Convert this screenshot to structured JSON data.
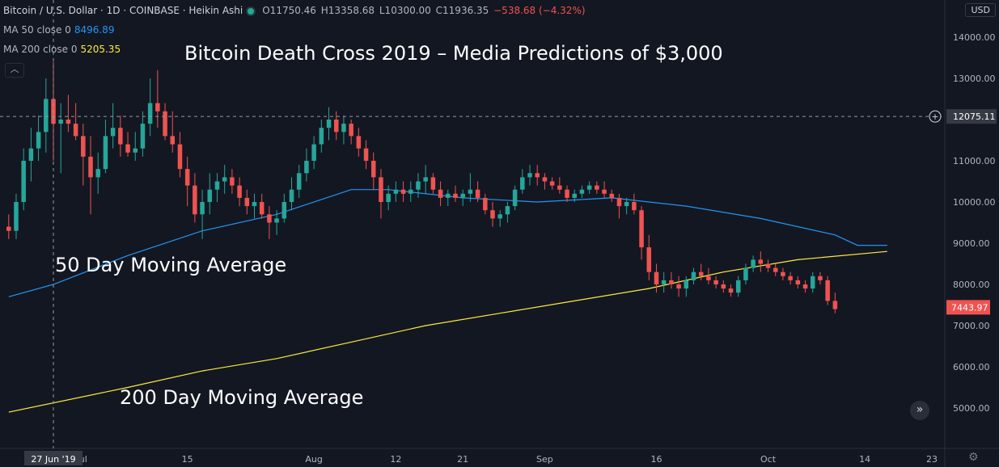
{
  "header": {
    "symbol": "Bitcoin / U.S. Dollar · 1D · COINBASE · Heikin Ashi",
    "open": "O11750.46",
    "high": "H13358.68",
    "low": "L10300.00",
    "close": "C11936.35",
    "change": "−538.68 (−4.32%)",
    "ma50_label": "MA 50 close 0",
    "ma50_value": "8496.89",
    "ma200_label": "MA 200 close 0",
    "ma200_value": "5205.35",
    "currency": "USD"
  },
  "annotations": {
    "title": "Bitcoin Death Cross 2019 – Media Predictions of $3,000",
    "ma50": "50 Day Moving Average",
    "ma200": "200 Day Moving Average"
  },
  "colors": {
    "background": "#131722",
    "up": "#26a69a",
    "down": "#ef5350",
    "ma50": "#2196f3",
    "ma200": "#ffeb3b",
    "text": "#b2b5be"
  },
  "icons": {
    "collapse": "chevron-up-icon",
    "scroll": "double-chevron-right-icon",
    "settings": "gear-icon",
    "crosshair_add": "plus-circle-icon"
  },
  "chart_data": {
    "type": "candlestick",
    "title": "Bitcoin Death Cross 2019 – Media Predictions of $3,000",
    "y_ticks": [
      "5000.00",
      "6000.00",
      "7000.00",
      "8000.00",
      "9000.00",
      "10000.00",
      "11000.00",
      "12000.00",
      "13000.00",
      "14000.00"
    ],
    "ylim": [
      4000,
      14500
    ],
    "x_tick_labels": [
      {
        "label": "ul",
        "day": 4
      },
      {
        "label": "15",
        "day": 18
      },
      {
        "label": "Aug",
        "day": 35
      },
      {
        "label": "12",
        "day": 46
      },
      {
        "label": "21",
        "day": 55
      },
      {
        "label": "Sep",
        "day": 66
      },
      {
        "label": "16",
        "day": 81
      },
      {
        "label": "Oct",
        "day": 96
      },
      {
        "label": "14",
        "day": 109
      },
      {
        "label": "23",
        "day": 118
      }
    ],
    "x_range": [
      0,
      123
    ],
    "crosshair": {
      "date_label": "27 Jun '19",
      "day": 0,
      "price": 12075.11,
      "price_label": "12075.11"
    },
    "last_price": {
      "value": 7443.97,
      "label": "7443.97"
    },
    "grid": false,
    "candles": [
      [
        -6,
        9400,
        9700,
        9100,
        9300
      ],
      [
        -5,
        9300,
        10200,
        9100,
        10000
      ],
      [
        -4,
        10000,
        11300,
        9800,
        11000
      ],
      [
        -3,
        11000,
        11800,
        10500,
        11300
      ],
      [
        -2,
        11300,
        12100,
        11000,
        11700
      ],
      [
        -1,
        11700,
        13000,
        11200,
        12500
      ],
      [
        0,
        12500,
        13400,
        11000,
        11900
      ],
      [
        1,
        11900,
        12400,
        10700,
        12000
      ],
      [
        2,
        12000,
        12600,
        11700,
        11900
      ],
      [
        3,
        11900,
        12400,
        11500,
        11600
      ],
      [
        4,
        11600,
        11900,
        10400,
        11100
      ],
      [
        5,
        11100,
        11600,
        9700,
        10600
      ],
      [
        6,
        10600,
        11200,
        10200,
        10800
      ],
      [
        7,
        10800,
        12000,
        10700,
        11600
      ],
      [
        8,
        11600,
        12400,
        11300,
        11800
      ],
      [
        9,
        11800,
        12100,
        11100,
        11400
      ],
      [
        10,
        11400,
        11700,
        11100,
        11200
      ],
      [
        11,
        11200,
        11700,
        11000,
        11300
      ],
      [
        12,
        11300,
        12200,
        11100,
        11900
      ],
      [
        13,
        11900,
        13000,
        11600,
        12400
      ],
      [
        14,
        12400,
        13200,
        11800,
        12200
      ],
      [
        15,
        12200,
        12400,
        11500,
        11600
      ],
      [
        16,
        11600,
        12200,
        11200,
        11400
      ],
      [
        17,
        11400,
        11700,
        10600,
        10800
      ],
      [
        18,
        10800,
        11100,
        9900,
        10400
      ],
      [
        19,
        10400,
        10700,
        9500,
        9700
      ],
      [
        20,
        9700,
        10300,
        9100,
        10000
      ],
      [
        21,
        10000,
        10700,
        9700,
        10300
      ],
      [
        22,
        10300,
        10700,
        10000,
        10500
      ],
      [
        23,
        10500,
        10900,
        10200,
        10600
      ],
      [
        24,
        10600,
        10800,
        10200,
        10400
      ],
      [
        25,
        10400,
        10600,
        9900,
        10100
      ],
      [
        26,
        10100,
        10300,
        9700,
        9900
      ],
      [
        27,
        9900,
        10200,
        9600,
        10000
      ],
      [
        28,
        10000,
        10200,
        9600,
        9700
      ],
      [
        29,
        9700,
        9900,
        9100,
        9500
      ],
      [
        30,
        9500,
        9800,
        9200,
        9600
      ],
      [
        31,
        9600,
        10200,
        9500,
        10000
      ],
      [
        32,
        10000,
        10600,
        9800,
        10300
      ],
      [
        33,
        10300,
        10900,
        10100,
        10700
      ],
      [
        34,
        10700,
        11300,
        10500,
        11000
      ],
      [
        35,
        11000,
        11600,
        10800,
        11400
      ],
      [
        36,
        11400,
        12000,
        11200,
        11800
      ],
      [
        37,
        11800,
        12300,
        11500,
        12000
      ],
      [
        38,
        12000,
        12200,
        11500,
        11700
      ],
      [
        39,
        11700,
        12100,
        11400,
        11900
      ],
      [
        40,
        11900,
        12000,
        11400,
        11600
      ],
      [
        41,
        11600,
        11800,
        11100,
        11300
      ],
      [
        42,
        11300,
        11500,
        10800,
        11000
      ],
      [
        43,
        11000,
        11200,
        10300,
        10600
      ],
      [
        44,
        10600,
        10800,
        9600,
        10000
      ],
      [
        45,
        10000,
        10400,
        9800,
        10200
      ],
      [
        46,
        10200,
        10500,
        10000,
        10300
      ],
      [
        47,
        10300,
        10500,
        10000,
        10200
      ],
      [
        48,
        10200,
        10500,
        10000,
        10300
      ],
      [
        49,
        10300,
        10700,
        10100,
        10500
      ],
      [
        50,
        10500,
        10900,
        10200,
        10600
      ],
      [
        51,
        10600,
        10700,
        10200,
        10300
      ],
      [
        52,
        10300,
        10500,
        9900,
        10100
      ],
      [
        53,
        10100,
        10300,
        9900,
        10200
      ],
      [
        54,
        10200,
        10400,
        10000,
        10100
      ],
      [
        55,
        10100,
        10300,
        9900,
        10200
      ],
      [
        56,
        10200,
        10700,
        10000,
        10300
      ],
      [
        57,
        10300,
        10500,
        10000,
        10100
      ],
      [
        58,
        10100,
        10200,
        9700,
        9800
      ],
      [
        59,
        9800,
        10000,
        9400,
        9600
      ],
      [
        60,
        9600,
        9800,
        9400,
        9700
      ],
      [
        61,
        9700,
        10000,
        9500,
        9900
      ],
      [
        62,
        9900,
        10400,
        9800,
        10300
      ],
      [
        63,
        10300,
        10800,
        10200,
        10600
      ],
      [
        64,
        10600,
        10900,
        10400,
        10700
      ],
      [
        65,
        10700,
        10900,
        10400,
        10600
      ],
      [
        66,
        10600,
        10700,
        10300,
        10500
      ],
      [
        67,
        10500,
        10600,
        10300,
        10400
      ],
      [
        68,
        10400,
        10600,
        10200,
        10300
      ],
      [
        69,
        10300,
        10400,
        10000,
        10100
      ],
      [
        70,
        10100,
        10300,
        10000,
        10200
      ],
      [
        71,
        10200,
        10400,
        10100,
        10300
      ],
      [
        72,
        10300,
        10500,
        10200,
        10400
      ],
      [
        73,
        10400,
        10500,
        10200,
        10300
      ],
      [
        74,
        10300,
        10500,
        10100,
        10200
      ],
      [
        75,
        10200,
        10300,
        10000,
        10100
      ],
      [
        76,
        10100,
        10200,
        9600,
        9900
      ],
      [
        77,
        9900,
        10100,
        9700,
        10000
      ],
      [
        78,
        10000,
        10200,
        9700,
        9800
      ],
      [
        79,
        9800,
        9900,
        8600,
        8900
      ],
      [
        80,
        8900,
        9200,
        8100,
        8300
      ],
      [
        81,
        8300,
        8500,
        7800,
        8000
      ],
      [
        82,
        8000,
        8300,
        7800,
        8100
      ],
      [
        83,
        8100,
        8300,
        7900,
        8000
      ],
      [
        84,
        8000,
        8200,
        7700,
        7900
      ],
      [
        85,
        7900,
        8200,
        7700,
        8100
      ],
      [
        86,
        8100,
        8400,
        8000,
        8300
      ],
      [
        87,
        8300,
        8500,
        8100,
        8200
      ],
      [
        88,
        8200,
        8400,
        8000,
        8100
      ],
      [
        89,
        8100,
        8200,
        7900,
        8000
      ],
      [
        90,
        8000,
        8100,
        7800,
        7900
      ],
      [
        91,
        7900,
        8000,
        7700,
        7800
      ],
      [
        92,
        7800,
        8200,
        7700,
        8100
      ],
      [
        93,
        8100,
        8500,
        8000,
        8400
      ],
      [
        94,
        8400,
        8700,
        8300,
        8600
      ],
      [
        95,
        8600,
        8800,
        8300,
        8500
      ],
      [
        96,
        8500,
        8600,
        8300,
        8400
      ],
      [
        97,
        8400,
        8500,
        8200,
        8300
      ],
      [
        98,
        8300,
        8400,
        8100,
        8200
      ],
      [
        99,
        8200,
        8300,
        8000,
        8100
      ],
      [
        100,
        8100,
        8200,
        7900,
        8000
      ],
      [
        101,
        8000,
        8100,
        7800,
        7900
      ],
      [
        102,
        7900,
        8300,
        7800,
        8200
      ],
      [
        103,
        8200,
        8300,
        8000,
        8100
      ],
      [
        104,
        8100,
        8200,
        7500,
        7600
      ],
      [
        105,
        7600,
        7800,
        7300,
        7400
      ]
    ],
    "series": [
      {
        "name": "MA 50 close 0",
        "color": "#2196f3",
        "points": [
          [
            -6,
            7700
          ],
          [
            0,
            8000
          ],
          [
            10,
            8700
          ],
          [
            20,
            9300
          ],
          [
            30,
            9700
          ],
          [
            40,
            10300
          ],
          [
            45,
            10300
          ],
          [
            55,
            10100
          ],
          [
            65,
            10000
          ],
          [
            75,
            10100
          ],
          [
            85,
            9900
          ],
          [
            95,
            9600
          ],
          [
            105,
            9200
          ],
          [
            108,
            8950
          ],
          [
            112,
            8950
          ]
        ]
      },
      {
        "name": "MA 200 close 0",
        "color": "#ffeb3b",
        "points": [
          [
            -6,
            4900
          ],
          [
            10,
            5500
          ],
          [
            20,
            5900
          ],
          [
            30,
            6200
          ],
          [
            40,
            6600
          ],
          [
            50,
            7000
          ],
          [
            60,
            7300
          ],
          [
            70,
            7600
          ],
          [
            80,
            7900
          ],
          [
            90,
            8300
          ],
          [
            100,
            8600
          ],
          [
            112,
            8800
          ]
        ]
      }
    ]
  }
}
